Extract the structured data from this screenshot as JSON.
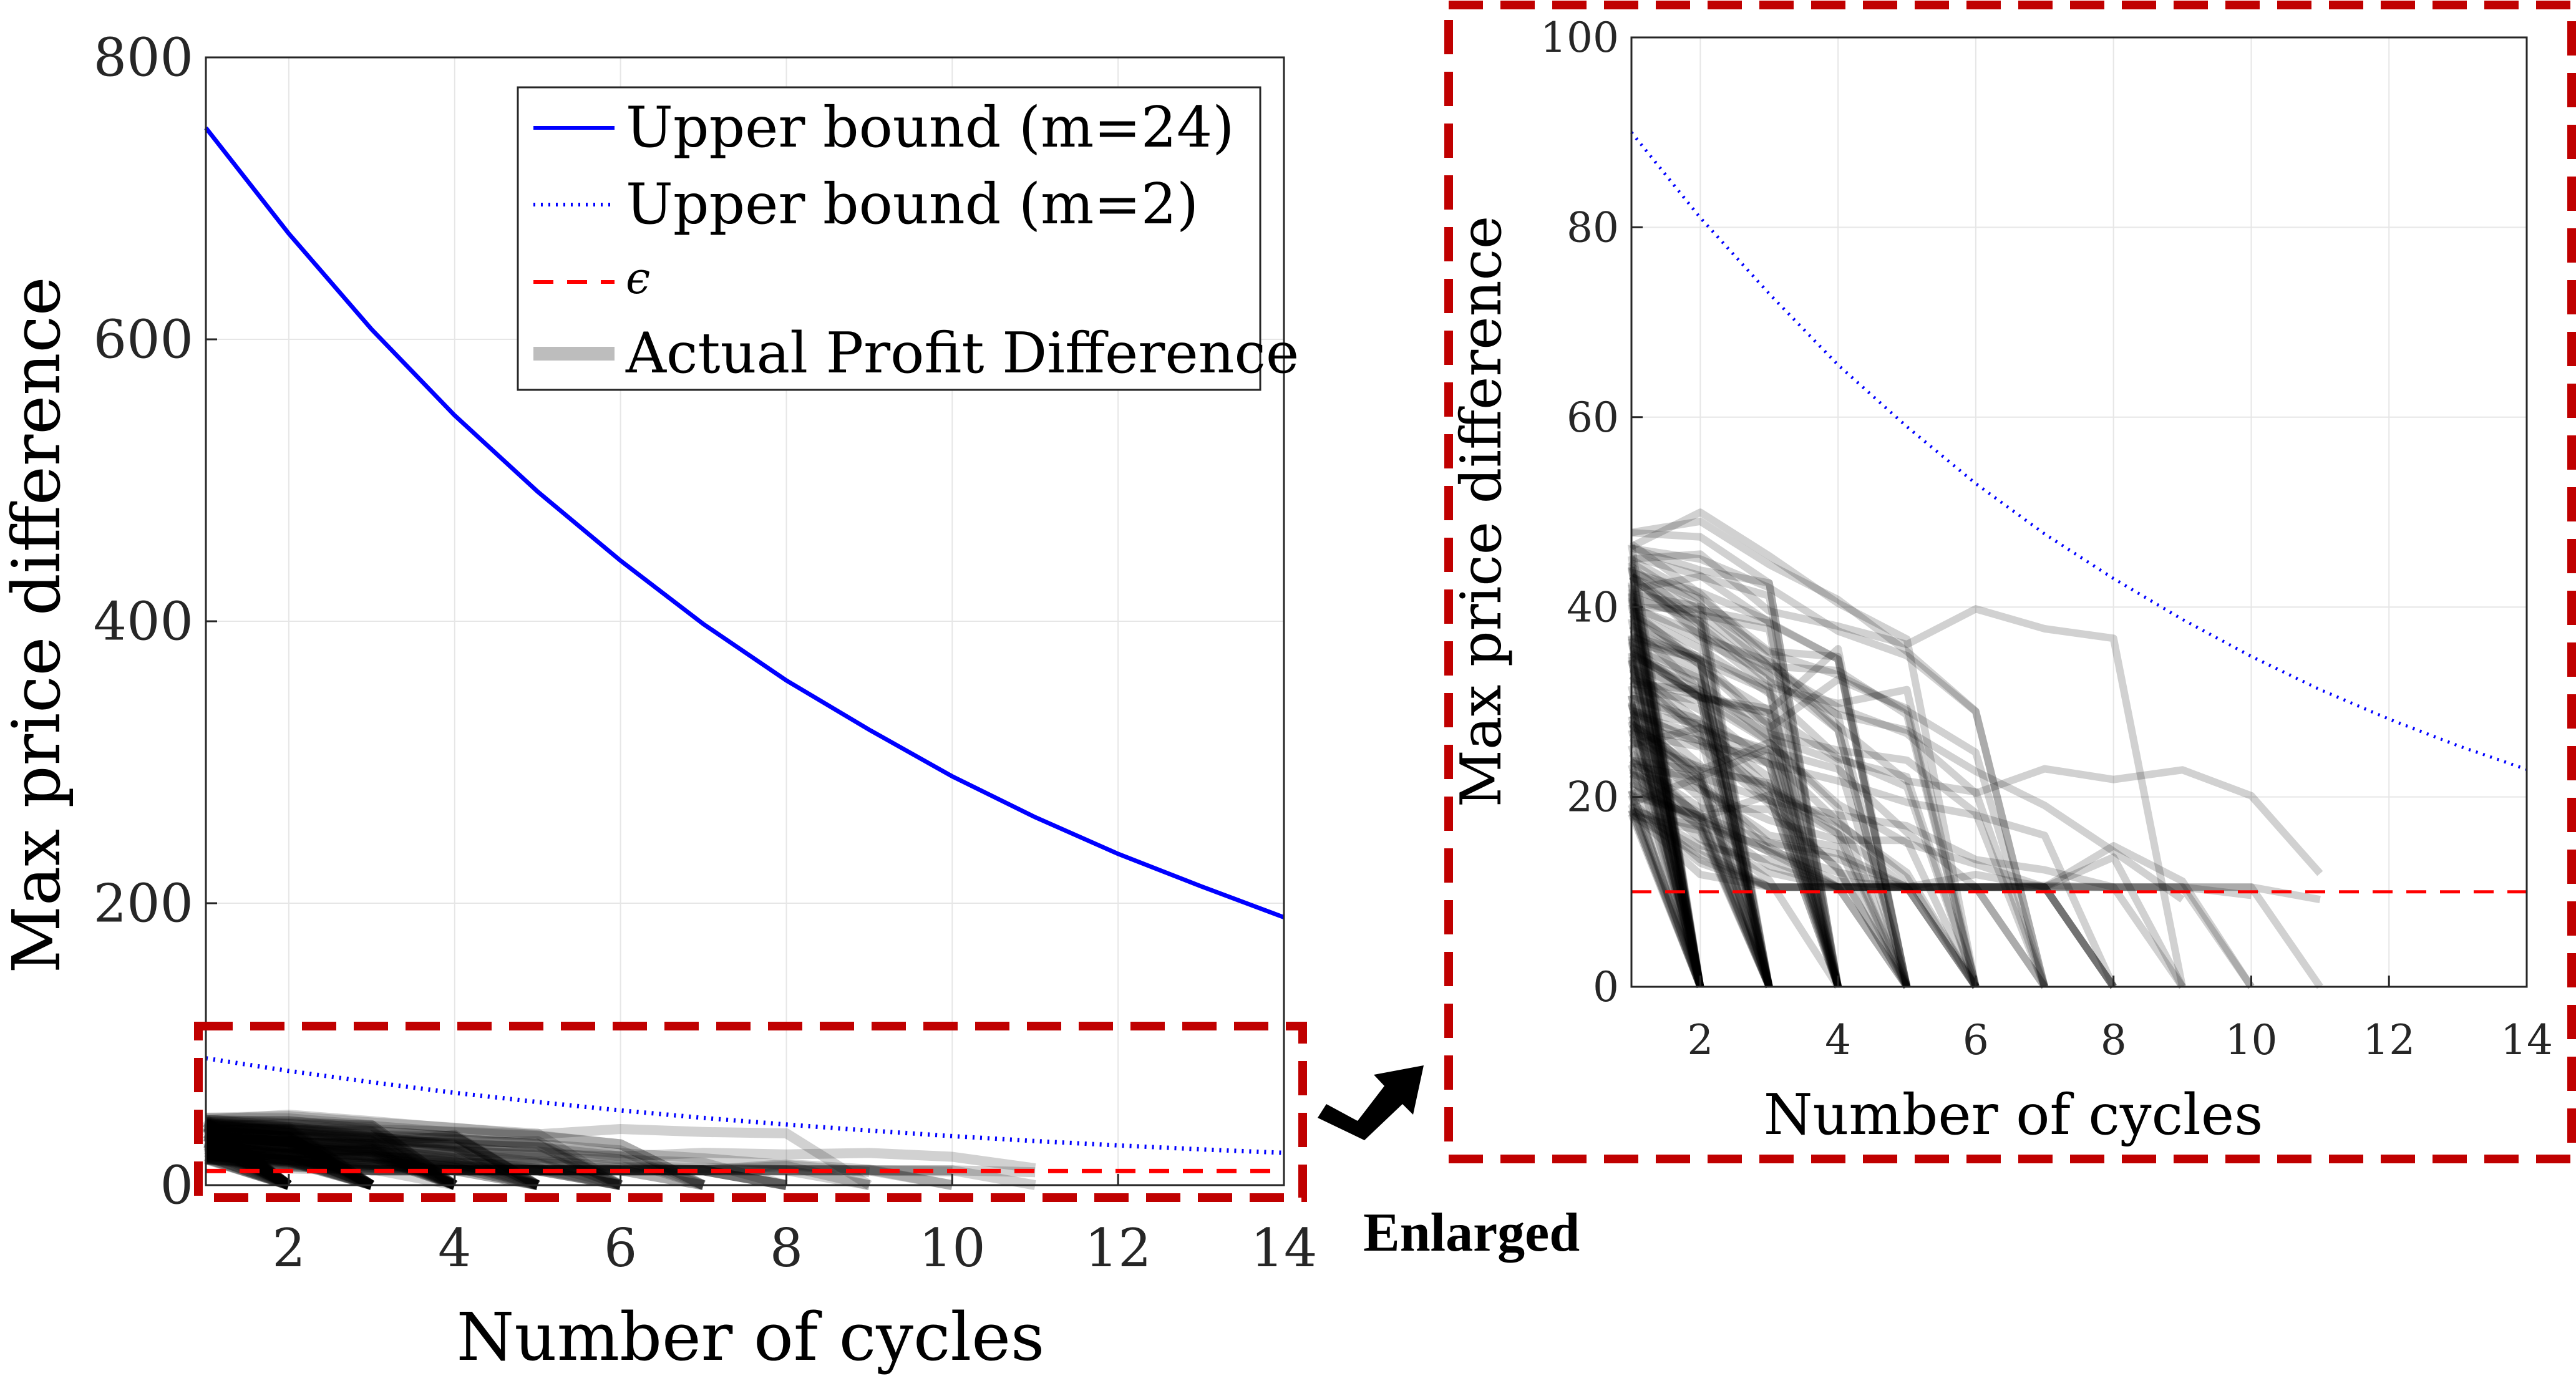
{
  "chart_data": [
    {
      "type": "line",
      "id": "main",
      "xlabel": "Number of cycles",
      "ylabel": "Max price difference",
      "xlim": [
        1,
        14
      ],
      "ylim": [
        0,
        800
      ],
      "xticks": [
        2,
        4,
        6,
        8,
        10,
        12,
        14
      ],
      "yticks": [
        0,
        200,
        400,
        600,
        800
      ],
      "grid": true,
      "legend_position": "top-right",
      "legend": [
        "Upper bound (m=24)",
        "Upper bound (m=2)",
        "ϵ",
        "Actual Profit Difference"
      ],
      "series": [
        {
          "name": "Upper bound (m=24)",
          "style": "solid",
          "color": "#0000ff",
          "x": [
            1,
            2,
            3,
            4,
            5,
            6,
            7,
            8,
            9,
            10,
            11,
            12,
            13,
            14
          ],
          "y": [
            750,
            675,
            607,
            546,
            492,
            443,
            398,
            358,
            323,
            290,
            261,
            235,
            212,
            190
          ]
        },
        {
          "name": "Upper bound (m=2)",
          "style": "dotted",
          "color": "#0000ff",
          "x": [
            1,
            2,
            3,
            4,
            5,
            6,
            7,
            8,
            9,
            10,
            11,
            12,
            13,
            14
          ],
          "y": [
            90,
            81,
            73,
            65.5,
            59,
            53,
            47.7,
            43,
            38.7,
            34.8,
            31.3,
            28.2,
            25.4,
            22.9
          ]
        },
        {
          "name": "ϵ",
          "style": "dashed",
          "color": "#ff0000",
          "x": [
            1,
            14
          ],
          "y": [
            10,
            10
          ]
        },
        {
          "name": "Actual Profit Difference",
          "style": "thick",
          "color": "#000000"
        }
      ]
    },
    {
      "type": "line",
      "id": "enlarged",
      "xlabel": "Number of cycles",
      "ylabel": "Max price difference",
      "xlim": [
        1,
        14
      ],
      "ylim": [
        0,
        100
      ],
      "xticks": [
        2,
        4,
        6,
        8,
        10,
        12,
        14
      ],
      "yticks": [
        0,
        20,
        40,
        60,
        80,
        100
      ],
      "grid": true
    }
  ],
  "annotation": {
    "label": "Enlarged"
  },
  "colors": {
    "highlight_box": "#c00000",
    "arrow": "#000000"
  }
}
